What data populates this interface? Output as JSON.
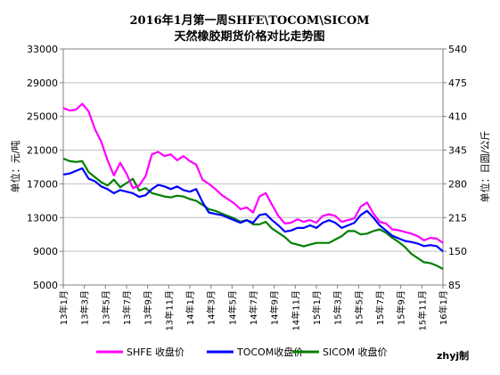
{
  "chart_data": {
    "type": "line",
    "title": "2016年1月第一周SHFE\\TOCOM\\SICOM",
    "subtitle": "天然橡胶期货价格对比走势图",
    "ylabel_left": "单位：元/吨",
    "ylabel_right": "单位：日圆/公斤",
    "ylim_left": [
      5000,
      33000
    ],
    "ylim_right": [
      85,
      540
    ],
    "yticks_left": [
      "5000",
      "9000",
      "13000",
      "17000",
      "21000",
      "25000",
      "29000",
      "33000"
    ],
    "yticks_right": [
      "85",
      "150",
      "215",
      "280",
      "345",
      "410",
      "475",
      "540"
    ],
    "x_tick_labels": [
      "13年1月",
      "13年3月",
      "13年5月",
      "13年7月",
      "13年9月",
      "13年11月",
      "14年1月",
      "14年3月",
      "14年5月",
      "14年7月",
      "14年9月",
      "14年11月",
      "15年1月",
      "15年3月",
      "15年5月",
      "15年7月",
      "15年9月",
      "15年11月",
      "16年1月"
    ],
    "grid": true,
    "legend_position": "bottom",
    "watermark": "zhyj制",
    "series": [
      {
        "name": "SHFE 收盘价",
        "axis": "left",
        "color": "#ff00ff",
        "values": [
          26000,
          25700,
          25800,
          26500,
          25600,
          23500,
          22000,
          19800,
          18000,
          19500,
          18200,
          16500,
          16800,
          17900,
          20500,
          20800,
          20300,
          20500,
          19800,
          20300,
          19700,
          19300,
          17500,
          17000,
          16400,
          15700,
          15200,
          14700,
          14000,
          14200,
          13600,
          15500,
          15900,
          14500,
          13200,
          12300,
          12400,
          12800,
          12500,
          12700,
          12400,
          13200,
          13400,
          13200,
          12500,
          12700,
          12900,
          14300,
          14800,
          13500,
          12500,
          12300,
          11600,
          11500,
          11300,
          11100,
          10800,
          10300,
          10600,
          10500,
          10000
        ]
      },
      {
        "name": "TOCOM收盘价",
        "axis": "right",
        "color": "#0000ff",
        "values": [
          298,
          300,
          305,
          310,
          290,
          285,
          275,
          270,
          262,
          268,
          265,
          262,
          255,
          258,
          270,
          278,
          275,
          270,
          275,
          268,
          265,
          270,
          245,
          225,
          222,
          220,
          215,
          210,
          205,
          210,
          205,
          220,
          222,
          210,
          200,
          188,
          190,
          195,
          195,
          200,
          195,
          205,
          210,
          205,
          195,
          200,
          205,
          220,
          228,
          215,
          200,
          190,
          180,
          175,
          170,
          168,
          165,
          160,
          162,
          160,
          150
        ]
      },
      {
        "name": "SICOM 收盘价",
        "axis": "left",
        "color": "#008000",
        "values": [
          20000,
          19700,
          19600,
          19700,
          18400,
          17800,
          17200,
          16800,
          17500,
          16600,
          17100,
          17600,
          16200,
          16500,
          15900,
          15700,
          15500,
          15400,
          15600,
          15500,
          15200,
          15000,
          14500,
          14000,
          13800,
          13500,
          13200,
          12900,
          12500,
          12700,
          12200,
          12200,
          12500,
          11700,
          11200,
          10700,
          10000,
          9800,
          9600,
          9800,
          10000,
          10000,
          10000,
          10400,
          10800,
          11400,
          11400,
          11000,
          11100,
          11400,
          11600,
          11200,
          10600,
          10100,
          9500,
          8700,
          8200,
          7700,
          7600,
          7300,
          6900
        ]
      }
    ]
  }
}
